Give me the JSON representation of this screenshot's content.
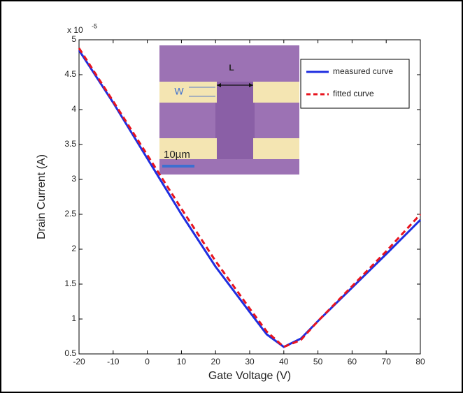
{
  "chart_data": {
    "type": "line",
    "x_label": "Gate Voltage (V)",
    "y_label": "Drain Current (A)",
    "y_multiplier": {
      "base": "x 10",
      "exponent": "-5"
    },
    "x": [
      -20,
      -10,
      0,
      10,
      20,
      30,
      35,
      40,
      45,
      50,
      60,
      70,
      80
    ],
    "series": [
      {
        "name": "measured curve",
        "color": "#1f2ee0",
        "style": "solid",
        "values": [
          4.85,
          4.1,
          3.3,
          2.5,
          1.75,
          1.1,
          0.78,
          0.6,
          0.72,
          0.97,
          1.45,
          1.93,
          2.42
        ]
      },
      {
        "name": "fitted curve",
        "color": "#e8141e",
        "style": "dashed",
        "values": [
          4.88,
          4.12,
          3.35,
          2.58,
          1.83,
          1.15,
          0.82,
          0.6,
          0.7,
          0.97,
          1.47,
          1.97,
          2.5
        ]
      }
    ],
    "xlim": [
      -20,
      80
    ],
    "xticks": [
      -20,
      -10,
      0,
      10,
      20,
      30,
      40,
      50,
      60,
      70,
      80
    ],
    "ylim": [
      0.5,
      5
    ],
    "yticks": [
      0.5,
      1,
      1.5,
      2,
      2.5,
      3,
      3.5,
      4,
      4.5,
      5
    ],
    "legend": "upper right",
    "inset_labels": [
      "L",
      "W",
      "10µm"
    ]
  }
}
